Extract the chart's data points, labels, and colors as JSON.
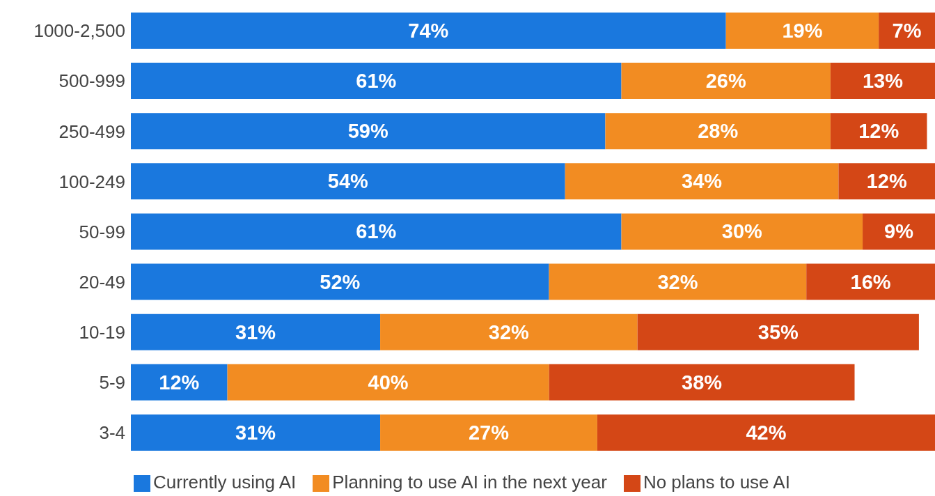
{
  "chart_data": {
    "type": "bar",
    "orientation": "horizontal",
    "stacked": true,
    "legend": "bottom",
    "grid": false,
    "categories": [
      "1000-2,500",
      "500-999",
      "250-499",
      "100-249",
      "50-99",
      "20-49",
      "10-19",
      "5-9",
      "3-4"
    ],
    "series": [
      {
        "name": "Currently using AI",
        "color": "#1a78de",
        "values": [
          74,
          61,
          59,
          54,
          61,
          52,
          31,
          12,
          31
        ],
        "value_labels": [
          "74%",
          "61%",
          "59%",
          "54%",
          "61%",
          "52%",
          "31%",
          "12%",
          "31%"
        ]
      },
      {
        "name": "Planning to use AI in the next year",
        "color": "#f28c22",
        "values": [
          19,
          26,
          28,
          34,
          30,
          32,
          32,
          40,
          27
        ],
        "value_labels": [
          "19%",
          "26%",
          "28%",
          "34%",
          "30%",
          "32%",
          "32%",
          "40%",
          "27%"
        ]
      },
      {
        "name": "No plans to use AI",
        "color": "#d44716",
        "values": [
          7,
          13,
          12,
          12,
          9,
          16,
          35,
          38,
          42
        ],
        "value_labels": [
          "7%",
          "13%",
          "12%",
          "12%",
          "9%",
          "16%",
          "35%",
          "38%",
          "42%"
        ]
      }
    ]
  }
}
